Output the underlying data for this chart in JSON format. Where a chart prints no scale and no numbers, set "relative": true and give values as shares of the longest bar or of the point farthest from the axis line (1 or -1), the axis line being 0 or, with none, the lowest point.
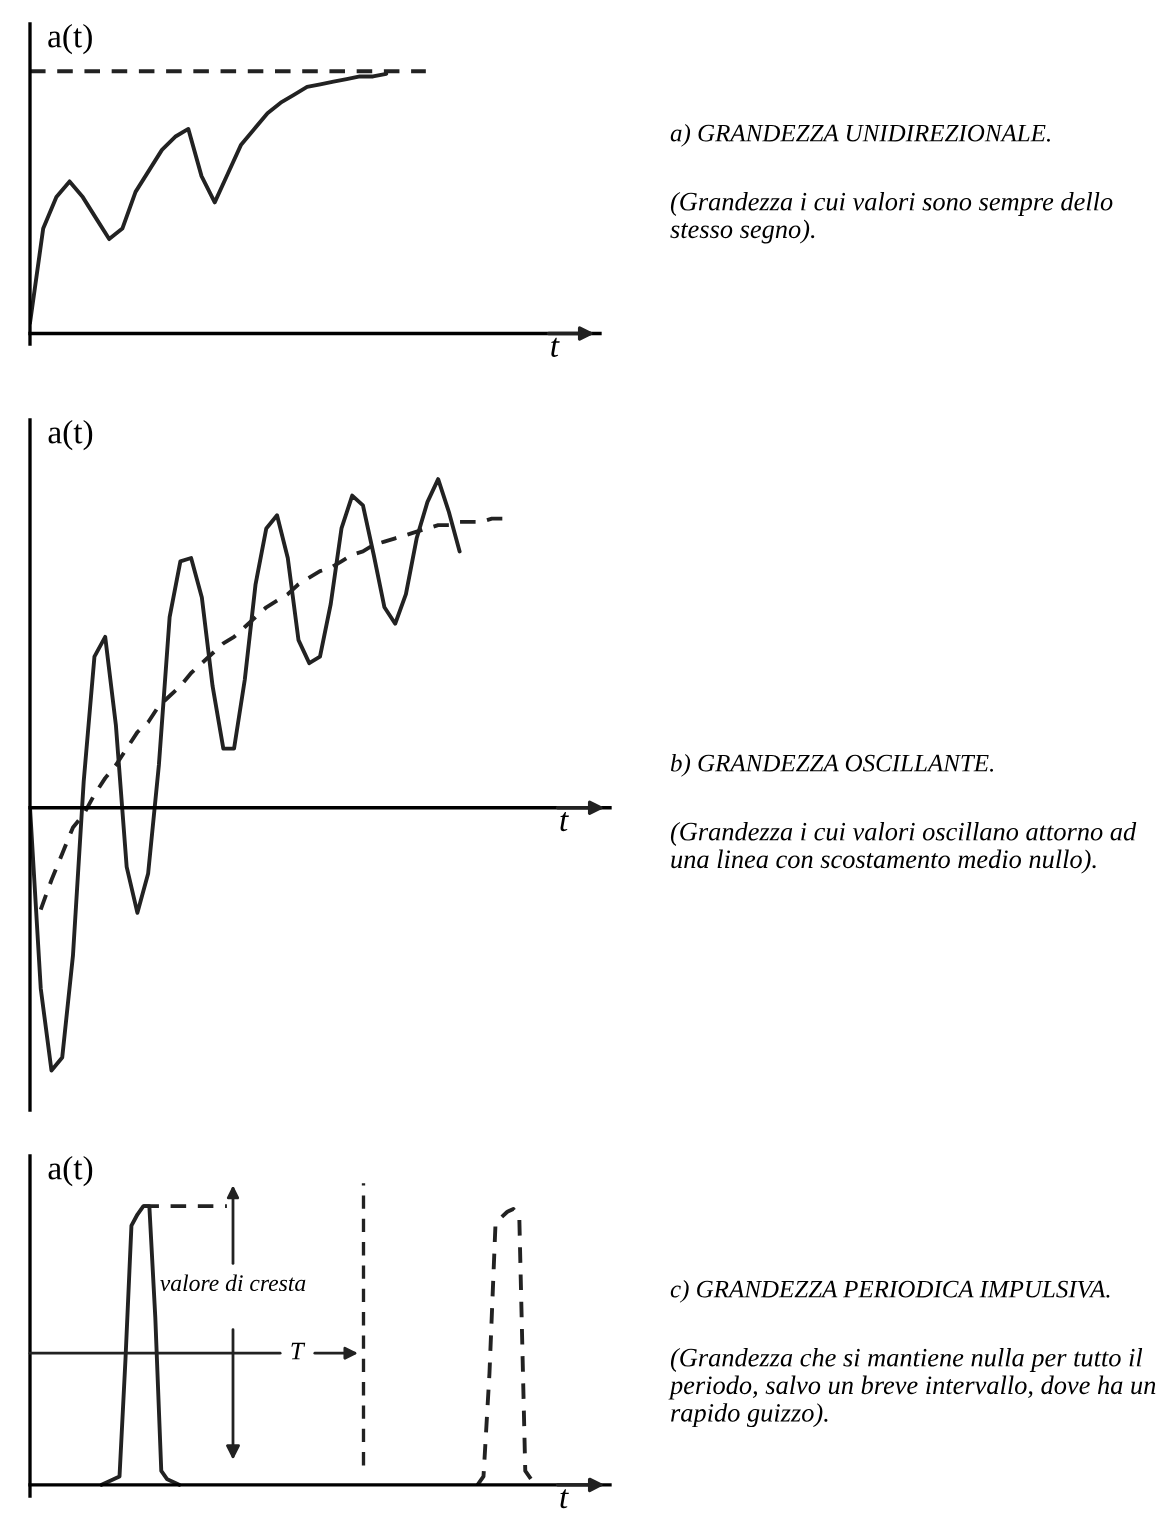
{
  "chart_data": [
    {
      "type": "line",
      "relative": true,
      "xlabel": "t",
      "ylabel": "a(t)",
      "annotations": [
        "a) GRANDEZZA UNIDIREZIONALE.",
        "(Grandezza i cui valori sono sempre dello stesso segno)."
      ],
      "categories": [
        null,
        null,
        null,
        null,
        null,
        null,
        null,
        null,
        null,
        null,
        null,
        null,
        null,
        null,
        null,
        null,
        null,
        null,
        null,
        null,
        null,
        null,
        null,
        null,
        null,
        null,
        null,
        null,
        null,
        null,
        null,
        null,
        null,
        null,
        null,
        null,
        null,
        null,
        null,
        null,
        null
      ],
      "series": [
        {
          "color": "#222222",
          "line_style": "solid",
          "values": [
            0.04,
            0.4,
            0.52,
            0.58,
            0.52,
            0.44,
            0.36,
            0.4,
            0.54,
            0.62,
            0.7,
            0.75,
            0.78,
            0.6,
            0.5,
            0.61,
            0.72,
            0.78,
            0.84,
            0.88,
            0.91,
            0.94,
            0.95,
            0.96,
            0.97,
            0.98,
            0.98,
            0.99,
            null,
            null,
            null,
            null,
            null,
            null,
            null,
            null,
            null,
            null,
            null,
            null,
            null
          ]
        },
        {
          "color": "#222222",
          "line_style": "dashed",
          "values": [
            1,
            1,
            1,
            1,
            1,
            1,
            1,
            1,
            1,
            1,
            1,
            1,
            1,
            1,
            1,
            1,
            1,
            1,
            1,
            1,
            1,
            1,
            1,
            1,
            1,
            1,
            1,
            1,
            1,
            1,
            1,
            null,
            null,
            null,
            null,
            null,
            null,
            null,
            null,
            null,
            null
          ]
        }
      ]
    },
    {
      "type": "line",
      "relative": true,
      "xlabel": "t",
      "ylabel": "a(t)",
      "annotations": [
        "b) GRANDEZZA OSCILLANTE.",
        "(Grandezza i cui valori oscillano attorno ad una linea con scostamento medio nullo)."
      ],
      "categories": [
        null,
        null,
        null,
        null,
        null,
        null,
        null,
        null,
        null,
        null,
        null,
        null,
        null,
        null,
        null,
        null,
        null,
        null,
        null,
        null,
        null,
        null,
        null,
        null,
        null,
        null,
        null,
        null,
        null,
        null,
        null,
        null,
        null,
        null,
        null,
        null,
        null,
        null,
        null,
        null,
        null,
        null,
        null,
        null,
        null,
        null,
        null,
        null,
        null,
        null,
        null
      ],
      "series": [
        {
          "color": "#222222",
          "line_style": "solid",
          "values": [
            0,
            -0.55,
            -0.8,
            -0.76,
            -0.45,
            0.08,
            0.46,
            0.52,
            0.25,
            -0.18,
            -0.32,
            -0.2,
            0.13,
            0.58,
            0.75,
            0.76,
            0.64,
            0.37,
            0.18,
            0.18,
            0.39,
            0.68,
            0.85,
            0.89,
            0.76,
            0.51,
            0.44,
            0.46,
            0.62,
            0.85,
            0.95,
            0.92,
            0.77,
            0.61,
            0.56,
            0.65,
            0.82,
            0.93,
            1.0,
            0.9,
            0.78,
            null,
            null,
            null,
            null,
            null,
            null,
            null,
            null,
            null,
            null
          ]
        },
        {
          "color": "#222222",
          "line_style": "dashed",
          "values": [
            null,
            -0.31,
            -0.22,
            -0.14,
            -0.06,
            -0.02,
            0.04,
            0.09,
            0.13,
            0.18,
            0.23,
            0.26,
            0.31,
            0.34,
            0.37,
            0.41,
            0.44,
            0.47,
            0.5,
            0.52,
            0.55,
            0.58,
            0.61,
            0.63,
            0.65,
            0.68,
            0.7,
            0.72,
            0.73,
            0.75,
            0.77,
            0.78,
            0.8,
            0.81,
            0.82,
            0.83,
            0.84,
            0.85,
            0.86,
            0.86,
            0.87,
            0.87,
            0.87,
            0.88,
            0.88,
            null,
            null,
            null,
            null,
            null,
            null
          ]
        }
      ]
    },
    {
      "type": "line",
      "relative": true,
      "xlabel": "t",
      "ylabel": "a(t)",
      "annotations": [
        "valore di cresta",
        "T",
        "c) GRANDEZZA PERIODICA IMPULSIVA.",
        "(Grandezza che si mantiene nulla per tutto il periodo, salvo un breve intervallo, dove ha un rapido guizzo)."
      ],
      "categories": [
        null,
        null,
        null,
        null,
        null,
        null,
        null,
        null,
        null,
        null,
        null,
        null,
        null,
        null,
        null,
        null,
        null,
        null,
        null,
        null,
        null,
        null,
        null,
        null,
        null,
        null,
        null,
        null,
        null,
        null,
        null,
        null,
        null,
        null,
        null,
        null,
        null,
        null,
        null,
        null,
        null,
        null,
        null,
        null,
        null,
        null,
        null,
        null,
        null,
        null,
        null,
        null,
        null,
        null,
        null,
        null,
        null,
        null,
        null,
        null,
        null,
        null,
        null,
        null,
        null,
        null,
        null,
        null,
        null,
        null,
        null,
        null,
        null,
        null,
        null,
        null,
        null,
        null,
        null,
        null,
        null,
        null,
        null,
        null,
        null,
        null,
        null,
        null,
        null,
        null,
        null
      ],
      "series": [
        {
          "color": "#222222",
          "line_style": "solid",
          "values": [
            null,
            null,
            null,
            null,
            null,
            null,
            null,
            null,
            null,
            null,
            null,
            null,
            0,
            0.01,
            0.02,
            0.03,
            0.45,
            0.93,
            0.97,
            1,
            1,
            0.6,
            0.05,
            0.02,
            0.01,
            0,
            null,
            null,
            null,
            null,
            null,
            null,
            null,
            null,
            null,
            null,
            null,
            null,
            null,
            null,
            null,
            null,
            null,
            null,
            null,
            null,
            null,
            null,
            null,
            null,
            null,
            null,
            null,
            null,
            null,
            null,
            null,
            null,
            null,
            null,
            null,
            null,
            null,
            null,
            null,
            null,
            null,
            null,
            null,
            null,
            null,
            null,
            null,
            null,
            null,
            null,
            null,
            null,
            null,
            null,
            null,
            null,
            null,
            null,
            null,
            null,
            null,
            null,
            null,
            null,
            null
          ]
        },
        {
          "color": "#222222",
          "line_style": "dashed",
          "values": [
            null,
            null,
            null,
            null,
            null,
            null,
            null,
            null,
            null,
            null,
            null,
            null,
            null,
            null,
            null,
            null,
            null,
            null,
            null,
            1,
            1,
            1,
            1,
            1,
            1,
            1,
            1,
            1,
            1,
            1,
            1,
            1,
            1,
            1,
            null,
            null,
            null,
            null,
            null,
            null,
            null,
            null,
            null,
            null,
            null,
            null,
            null,
            null,
            null,
            null,
            null,
            null,
            null,
            null,
            null,
            null,
            null,
            null,
            null,
            null,
            null,
            null,
            null,
            null,
            null,
            null,
            null,
            null,
            null,
            null,
            null,
            null,
            null,
            null,
            null,
            null,
            null,
            null,
            null,
            null,
            null,
            null,
            null,
            null,
            null,
            null,
            null,
            null,
            null,
            null,
            null
          ]
        },
        {
          "color": "#222222",
          "line_style": "dashed",
          "values": [
            null,
            null,
            null,
            null,
            null,
            null,
            null,
            null,
            null,
            null,
            null,
            null,
            null,
            null,
            null,
            null,
            null,
            null,
            null,
            null,
            null,
            null,
            null,
            null,
            null,
            null,
            null,
            null,
            null,
            null,
            null,
            null,
            null,
            null,
            null,
            null,
            null,
            null,
            null,
            null,
            null,
            null,
            null,
            null,
            null,
            null,
            null,
            null,
            null,
            null,
            null,
            null,
            null,
            null,
            null,
            null,
            null,
            null,
            null,
            null,
            null,
            null,
            null,
            null,
            null,
            null,
            null,
            null,
            null,
            null,
            null,
            null,
            null,
            null,
            null,
            0,
            0.03,
            0.4,
            0.93,
            0.96,
            0.98,
            0.99,
            0.96,
            0.05,
            0.02,
            0,
            null,
            null,
            null,
            null,
            null
          ]
        }
      ]
    }
  ]
}
